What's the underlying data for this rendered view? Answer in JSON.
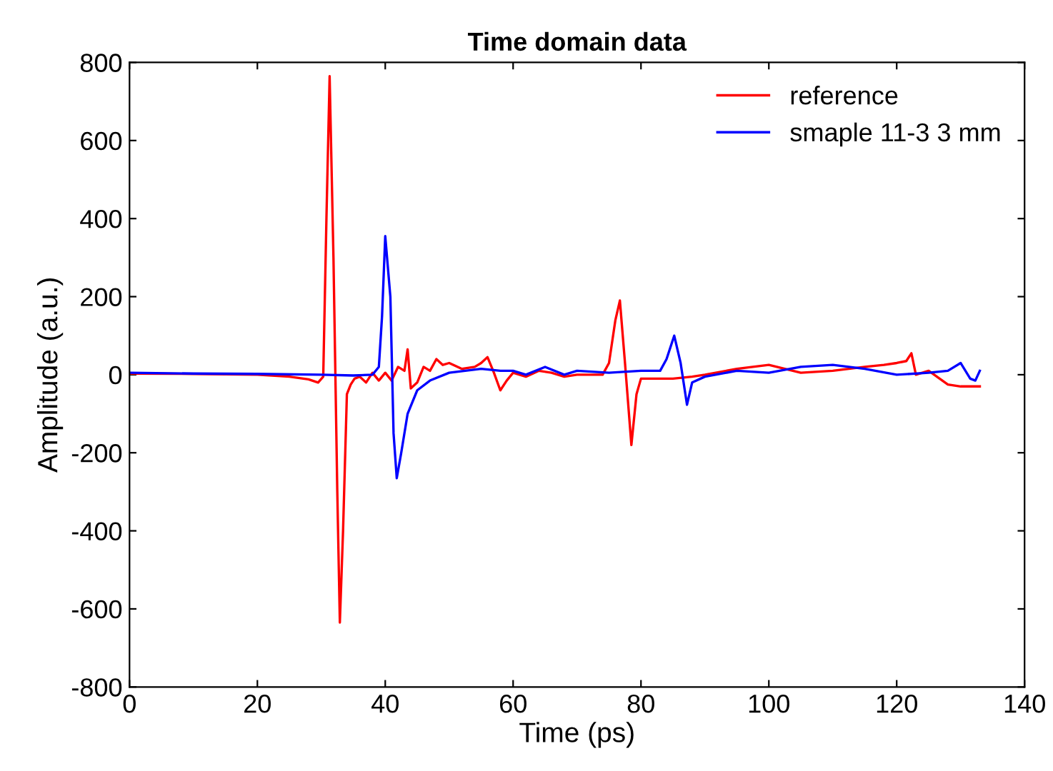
{
  "chart_data": {
    "type": "line",
    "title": "Time domain data",
    "xlabel": "Time (ps)",
    "ylabel": "Amplitude (a.u.)",
    "xlim": [
      0,
      140
    ],
    "ylim": [
      -800,
      800
    ],
    "xticks": [
      0,
      20,
      40,
      60,
      80,
      100,
      120,
      140
    ],
    "yticks": [
      -800,
      -600,
      -400,
      -200,
      0,
      200,
      400,
      600,
      800
    ],
    "grid": false,
    "legend": "top right",
    "line_style": "solid",
    "marker": "none",
    "series": [
      {
        "name": "reference",
        "color": "#ff0000",
        "x": [
          0,
          10,
          20,
          25,
          28,
          29.5,
          30.3,
          30.8,
          31.3,
          31.9,
          32.5,
          32.9,
          33.4,
          34,
          34.6,
          35.2,
          36,
          37,
          38,
          39,
          40,
          41,
          42,
          43,
          43.5,
          44,
          45,
          46,
          47,
          48,
          49,
          50,
          52,
          54,
          55,
          56,
          57,
          58,
          59,
          60,
          62,
          64,
          66,
          68,
          70,
          72,
          74,
          75,
          76,
          76.7,
          77.5,
          78.5,
          79.3,
          80,
          82,
          85,
          88,
          90,
          95,
          100,
          105,
          110,
          115,
          118,
          120,
          121.5,
          122.3,
          123,
          125,
          128,
          130,
          133
        ],
        "values": [
          3,
          2,
          0,
          -5,
          -12,
          -20,
          -5,
          400,
          765,
          300,
          -300,
          -635,
          -400,
          -50,
          -25,
          -10,
          -5,
          -20,
          5,
          -15,
          5,
          -15,
          20,
          10,
          65,
          -35,
          -20,
          20,
          10,
          40,
          25,
          30,
          15,
          20,
          30,
          45,
          5,
          -40,
          -15,
          5,
          -5,
          10,
          5,
          -5,
          0,
          0,
          0,
          30,
          140,
          190,
          30,
          -180,
          -50,
          -10,
          -10,
          -10,
          -5,
          0,
          15,
          25,
          5,
          10,
          20,
          25,
          30,
          35,
          55,
          0,
          10,
          -25,
          -30,
          -30
        ]
      },
      {
        "name": "smaple 11-3 3 mm",
        "color": "#0000ff",
        "x": [
          0,
          10,
          20,
          30,
          35,
          38,
          39,
          39.5,
          40,
          40.8,
          41.3,
          41.8,
          42.5,
          43.5,
          45,
          47,
          50,
          55,
          58,
          60,
          62,
          65,
          68,
          70,
          75,
          80,
          83,
          84,
          85.2,
          86.2,
          87.2,
          88,
          90,
          95,
          100,
          105,
          110,
          115,
          120,
          125,
          128,
          130,
          131.5,
          132.3,
          133
        ],
        "values": [
          5,
          3,
          2,
          0,
          -2,
          0,
          20,
          150,
          355,
          200,
          -150,
          -265,
          -200,
          -100,
          -40,
          -15,
          5,
          15,
          10,
          10,
          0,
          20,
          0,
          10,
          5,
          10,
          10,
          40,
          100,
          30,
          -77,
          -20,
          -5,
          10,
          5,
          20,
          25,
          15,
          0,
          5,
          10,
          30,
          -10,
          -15,
          10
        ]
      }
    ]
  }
}
